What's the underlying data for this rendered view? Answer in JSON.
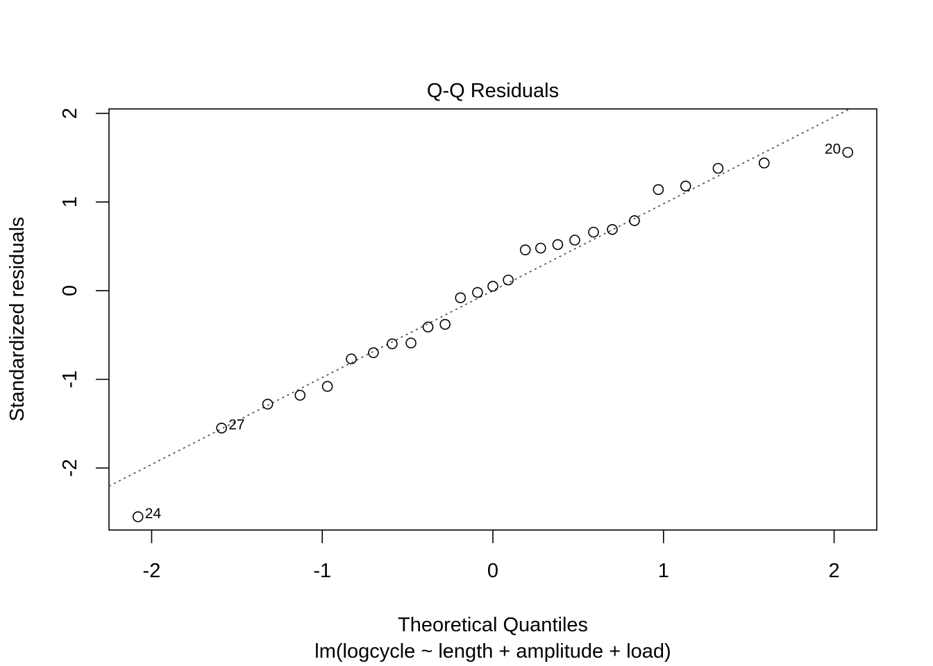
{
  "chart_data": {
    "type": "scatter",
    "title": "Q-Q Residuals",
    "xlabel": "Theoretical Quantiles",
    "subtitle": "lm(logcycle ~ length + amplitude + load)",
    "ylabel": "Standardized residuals",
    "xlim": [
      -2.25,
      2.25
    ],
    "ylim": [
      -2.7,
      2.05
    ],
    "xticks": [
      -2,
      -1,
      0,
      1,
      2
    ],
    "yticks": [
      -2,
      -1,
      0,
      1,
      2
    ],
    "xtick_labels": [
      "-2",
      "-1",
      "0",
      "1",
      "2"
    ],
    "ytick_labels": [
      "-2",
      "-1",
      "0",
      "1",
      "2"
    ],
    "grid": false,
    "reference_line": {
      "intercept": 0.0,
      "slope": 0.98,
      "style": "dotted"
    },
    "points": [
      {
        "x": -2.08,
        "y": -2.55,
        "label": "24"
      },
      {
        "x": -1.59,
        "y": -1.55,
        "label": "27"
      },
      {
        "x": -1.32,
        "y": -1.28
      },
      {
        "x": -1.13,
        "y": -1.18
      },
      {
        "x": -0.97,
        "y": -1.08
      },
      {
        "x": -0.83,
        "y": -0.77
      },
      {
        "x": -0.7,
        "y": -0.7
      },
      {
        "x": -0.59,
        "y": -0.6
      },
      {
        "x": -0.48,
        "y": -0.59
      },
      {
        "x": -0.38,
        "y": -0.41
      },
      {
        "x": -0.28,
        "y": -0.38
      },
      {
        "x": -0.19,
        "y": -0.08
      },
      {
        "x": -0.09,
        "y": -0.02
      },
      {
        "x": 0.0,
        "y": 0.05
      },
      {
        "x": 0.09,
        "y": 0.12
      },
      {
        "x": 0.19,
        "y": 0.46
      },
      {
        "x": 0.28,
        "y": 0.48
      },
      {
        "x": 0.38,
        "y": 0.52
      },
      {
        "x": 0.48,
        "y": 0.57
      },
      {
        "x": 0.59,
        "y": 0.66
      },
      {
        "x": 0.7,
        "y": 0.69
      },
      {
        "x": 0.83,
        "y": 0.79
      },
      {
        "x": 0.97,
        "y": 1.14
      },
      {
        "x": 1.13,
        "y": 1.18
      },
      {
        "x": 1.32,
        "y": 1.38
      },
      {
        "x": 1.59,
        "y": 1.44
      },
      {
        "x": 2.08,
        "y": 1.56,
        "label": "20"
      }
    ]
  }
}
